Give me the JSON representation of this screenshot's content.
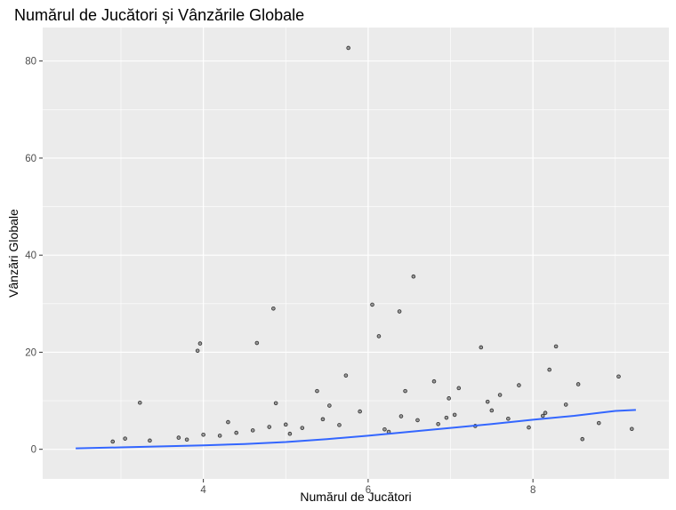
{
  "chart_data": {
    "type": "scatter",
    "title": "Numărul de Jucători și Vânzările Globale",
    "xlabel": "Numărul de Jucători",
    "ylabel": "Vânzări Globale",
    "xlim": [
      2.05,
      9.65
    ],
    "ylim": [
      -6.1,
      86.9
    ],
    "x_ticks": [
      4,
      6,
      8
    ],
    "x_tick_labels": [
      "4",
      "6",
      "8"
    ],
    "y_ticks": [
      0,
      20,
      40,
      60,
      80
    ],
    "y_tick_labels": [
      "0",
      "20",
      "40",
      "60",
      "80"
    ],
    "grid": true,
    "legend": "none",
    "colors": {
      "panel_background": "#ebebeb",
      "grid": "#ffffff",
      "points": "#000000",
      "trend_line": "#3366ff"
    },
    "series": [
      {
        "kind": "points",
        "x": [
          5.76,
          4.85,
          3.96,
          4.65,
          3.93,
          6.05,
          6.38,
          6.13,
          6.55,
          7.37,
          8.28,
          3.23,
          4.88,
          5.38,
          5.53,
          7.1,
          9.04,
          8.2,
          7.83,
          6.8,
          6.98,
          7.6,
          6.45,
          5.73,
          2.9,
          3.05,
          3.35,
          3.7,
          4.0,
          4.2,
          4.4,
          4.6,
          4.8,
          5.0,
          5.2,
          5.45,
          5.65,
          5.9,
          6.2,
          6.4,
          6.6,
          6.85,
          7.05,
          7.3,
          7.5,
          7.7,
          7.95,
          8.15,
          8.4,
          8.6,
          8.8,
          9.2,
          8.55,
          8.12,
          7.45,
          6.95,
          6.25,
          5.05,
          4.3,
          3.8
        ],
        "y": [
          82.7,
          29.0,
          21.8,
          21.9,
          20.3,
          29.8,
          28.4,
          23.3,
          35.6,
          21.0,
          21.2,
          9.6,
          9.5,
          12.0,
          9.0,
          12.6,
          15.0,
          16.4,
          13.2,
          14.0,
          10.5,
          11.2,
          12.0,
          15.2,
          1.6,
          2.2,
          1.8,
          2.4,
          3.0,
          2.8,
          3.4,
          3.9,
          4.6,
          5.1,
          4.4,
          6.2,
          5.0,
          7.8,
          4.1,
          6.8,
          6.0,
          5.2,
          7.1,
          4.8,
          8.0,
          6.3,
          4.5,
          7.5,
          9.2,
          2.1,
          5.4,
          4.2,
          13.4,
          6.9,
          9.8,
          6.5,
          3.6,
          3.2,
          5.6,
          2.0
        ]
      },
      {
        "kind": "trend",
        "name": "",
        "x": [
          2.45,
          3.0,
          3.5,
          4.0,
          4.5,
          5.0,
          5.5,
          6.0,
          6.5,
          7.0,
          7.5,
          8.0,
          8.5,
          9.0,
          9.25
        ],
        "y": [
          0.2,
          0.4,
          0.6,
          0.8,
          1.1,
          1.5,
          2.1,
          2.8,
          3.6,
          4.4,
          5.2,
          6.1,
          6.9,
          7.9,
          8.1
        ]
      }
    ]
  }
}
